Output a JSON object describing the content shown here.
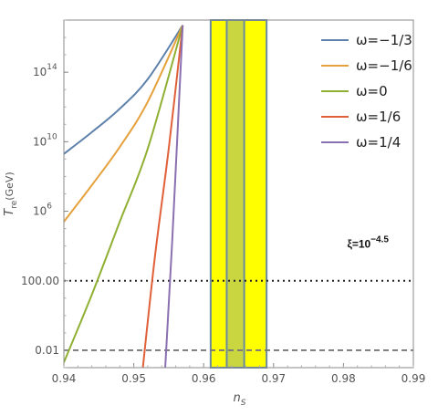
{
  "chart_data": {
    "type": "line",
    "xlabel": "n",
    "xlabel_sub": "S",
    "ylabel": "T",
    "ylabel_sub": "re",
    "ylabel_unit": "(GeV)",
    "xlim": [
      0.94,
      0.99
    ],
    "ylim_log10": [
      -3,
      17
    ],
    "x_ticks": [
      {
        "value": 0.94,
        "label": "0.94"
      },
      {
        "value": 0.95,
        "label": "0.95"
      },
      {
        "value": 0.96,
        "label": "0.96"
      },
      {
        "value": 0.97,
        "label": "0.97"
      },
      {
        "value": 0.98,
        "label": "0.98"
      },
      {
        "value": 0.99,
        "label": "0.99"
      }
    ],
    "y_ticks": [
      {
        "log10": -2,
        "base": "0.01",
        "exp": ""
      },
      {
        "log10": 2,
        "base": "100.00",
        "exp": ""
      },
      {
        "log10": 6,
        "base": "10",
        "exp": "6"
      },
      {
        "log10": 10,
        "base": "10",
        "exp": "10"
      },
      {
        "log10": 14,
        "base": "10",
        "exp": "14"
      }
    ],
    "series": [
      {
        "name": "ω=−1/3",
        "color": "#5e81ac",
        "points": [
          [
            0.94,
            9.3
          ],
          [
            0.944,
            10.55
          ],
          [
            0.948,
            11.9
          ],
          [
            0.952,
            13.6
          ],
          [
            0.957,
            16.7
          ]
        ]
      },
      {
        "name": "ω=−1/6",
        "color": "#e5a13c",
        "points": [
          [
            0.94,
            5.4
          ],
          [
            0.944,
            7.5
          ],
          [
            0.948,
            9.7
          ],
          [
            0.952,
            12.3
          ],
          [
            0.957,
            16.7
          ]
        ]
      },
      {
        "name": "ω=0",
        "color": "#8fb032",
        "points": [
          [
            0.94,
            -2.7
          ],
          [
            0.944,
            1.2
          ],
          [
            0.948,
            5.4
          ],
          [
            0.952,
            9.6
          ],
          [
            0.957,
            16.7
          ]
        ]
      },
      {
        "name": "ω=1/6",
        "color": "#e0603a",
        "points": [
          [
            0.9513,
            -3.0
          ],
          [
            0.953,
            3.3
          ],
          [
            0.955,
            9.6
          ],
          [
            0.957,
            16.7
          ]
        ]
      },
      {
        "name": "ω=1/4",
        "color": "#8a70b0",
        "points": [
          [
            0.9545,
            -3.0
          ],
          [
            0.9555,
            4.3
          ],
          [
            0.957,
            16.7
          ]
        ]
      }
    ],
    "bands": [
      {
        "x0": 0.961,
        "x1": 0.969,
        "color": "#ffff00",
        "edge": "#6a8aa0"
      },
      {
        "x0": 0.9633,
        "x1": 0.9658,
        "color": "#c9d640",
        "edge": "#6a8aa0"
      }
    ],
    "hlines": [
      {
        "log10": 2,
        "style": "dotted",
        "color": "#222222"
      },
      {
        "log10": -2,
        "style": "dashed",
        "color": "#777777"
      }
    ],
    "annotation": {
      "base": "ξ=10",
      "exp": "−4.5",
      "x": 0.9835,
      "log10": 3.9
    },
    "legend_position": "top-right",
    "grid": false
  }
}
